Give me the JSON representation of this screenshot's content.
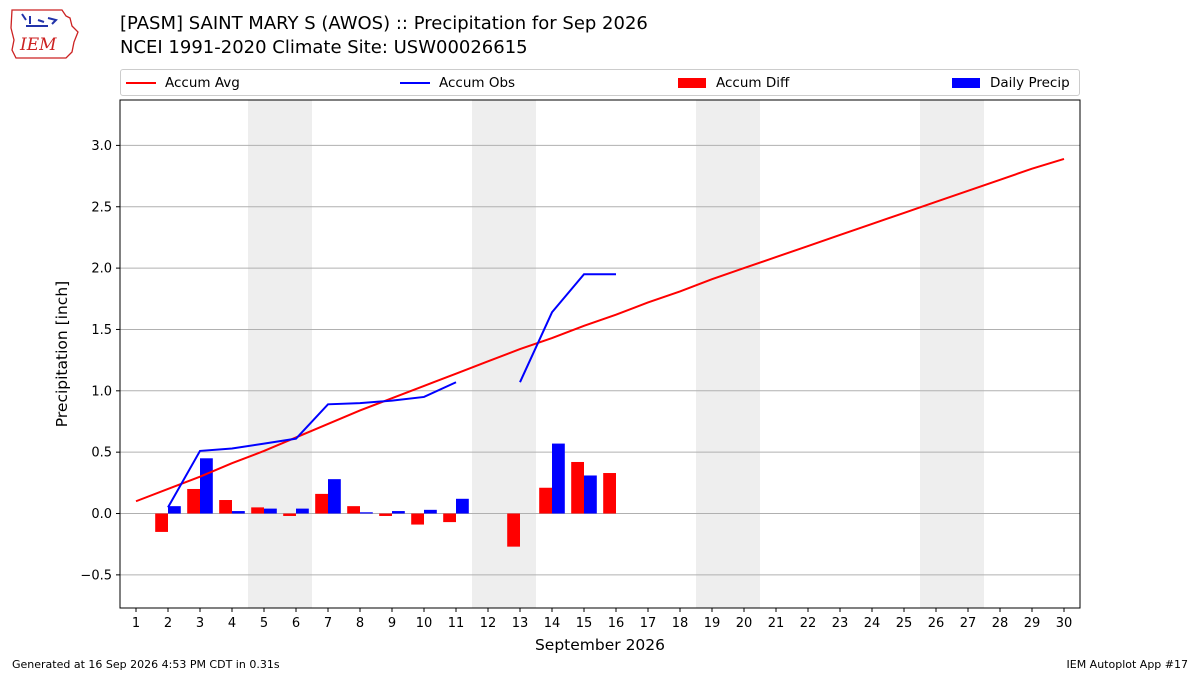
{
  "header": {
    "title_line1": "[PASM] SAINT MARY S (AWOS) :: Precipitation for Sep 2026",
    "title_line2": "NCEI 1991-2020 Climate Site: USW00026615",
    "logo_text": "IEM"
  },
  "legend": {
    "accum_avg": "Accum Avg",
    "accum_obs": "Accum Obs",
    "accum_diff": "Accum Diff",
    "daily_precip": "Daily Precip"
  },
  "colors": {
    "accum_avg": "#ff0000",
    "accum_obs": "#0000ff",
    "accum_diff": "#ff0000",
    "daily_precip": "#0000ff",
    "weekend_shade": "#eeeeee",
    "grid": "#b0b0b0"
  },
  "chart_data": {
    "type": "bar",
    "xlabel": "September 2026",
    "ylabel": "Precipitation [inch]",
    "xlim": [
      0.5,
      30.5
    ],
    "ylim": [
      -0.77,
      3.37
    ],
    "grid": "horizontal",
    "legend_placement": "top",
    "x": [
      1,
      2,
      3,
      4,
      5,
      6,
      7,
      8,
      9,
      10,
      11,
      12,
      13,
      14,
      15,
      16,
      17,
      18,
      19,
      20,
      21,
      22,
      23,
      24,
      25,
      26,
      27,
      28,
      29,
      30
    ],
    "yticks": [
      -0.5,
      0.0,
      0.5,
      1.0,
      1.5,
      2.0,
      2.5,
      3.0
    ],
    "ytick_labels": [
      "−0.5",
      "0.0",
      "0.5",
      "1.0",
      "1.5",
      "2.0",
      "2.5",
      "3.0"
    ],
    "weekend_days": [
      5,
      6,
      12,
      13,
      19,
      20,
      26,
      27
    ],
    "series": [
      {
        "name": "Accum Avg",
        "kind": "line",
        "x": [
          1,
          2,
          3,
          4,
          5,
          6,
          7,
          8,
          9,
          10,
          11,
          12,
          13,
          14,
          15,
          16,
          17,
          18,
          19,
          20,
          21,
          22,
          23,
          24,
          25,
          26,
          27,
          28,
          29,
          30
        ],
        "values": [
          0.1,
          0.2,
          0.3,
          0.41,
          0.51,
          0.62,
          0.73,
          0.84,
          0.94,
          1.04,
          1.14,
          1.24,
          1.34,
          1.43,
          1.53,
          1.62,
          1.72,
          1.81,
          1.91,
          2.0,
          2.09,
          2.18,
          2.27,
          2.36,
          2.45,
          2.54,
          2.63,
          2.72,
          2.81,
          2.89
        ]
      },
      {
        "name": "Accum Obs",
        "kind": "line",
        "segments": [
          {
            "x": [
              2,
              3,
              4,
              5,
              6,
              7,
              8,
              9,
              10,
              11
            ],
            "values": [
              0.05,
              0.51,
              0.53,
              0.57,
              0.61,
              0.89,
              0.9,
              0.92,
              0.95,
              1.07
            ]
          },
          {
            "x": [
              13,
              14,
              15,
              16
            ],
            "values": [
              1.07,
              1.64,
              1.95,
              1.95
            ]
          }
        ]
      },
      {
        "name": "Accum Diff",
        "kind": "bar",
        "x": [
          2,
          3,
          4,
          5,
          6,
          7,
          8,
          9,
          10,
          11,
          13,
          14,
          15,
          16
        ],
        "values": [
          -0.15,
          0.2,
          0.11,
          0.05,
          -0.02,
          0.16,
          0.06,
          -0.02,
          -0.09,
          -0.07,
          -0.27,
          0.21,
          0.42,
          0.33
        ]
      },
      {
        "name": "Daily Precip",
        "kind": "bar",
        "x": [
          2,
          3,
          4,
          5,
          6,
          7,
          8,
          9,
          10,
          11,
          14,
          15
        ],
        "values": [
          0.06,
          0.45,
          0.02,
          0.04,
          0.04,
          0.28,
          0.01,
          0.02,
          0.03,
          0.12,
          0.57,
          0.31
        ]
      }
    ]
  },
  "footer": {
    "generated": "Generated at 16 Sep 2026 4:53 PM CDT in 0.31s",
    "app": "IEM Autoplot App #17"
  }
}
